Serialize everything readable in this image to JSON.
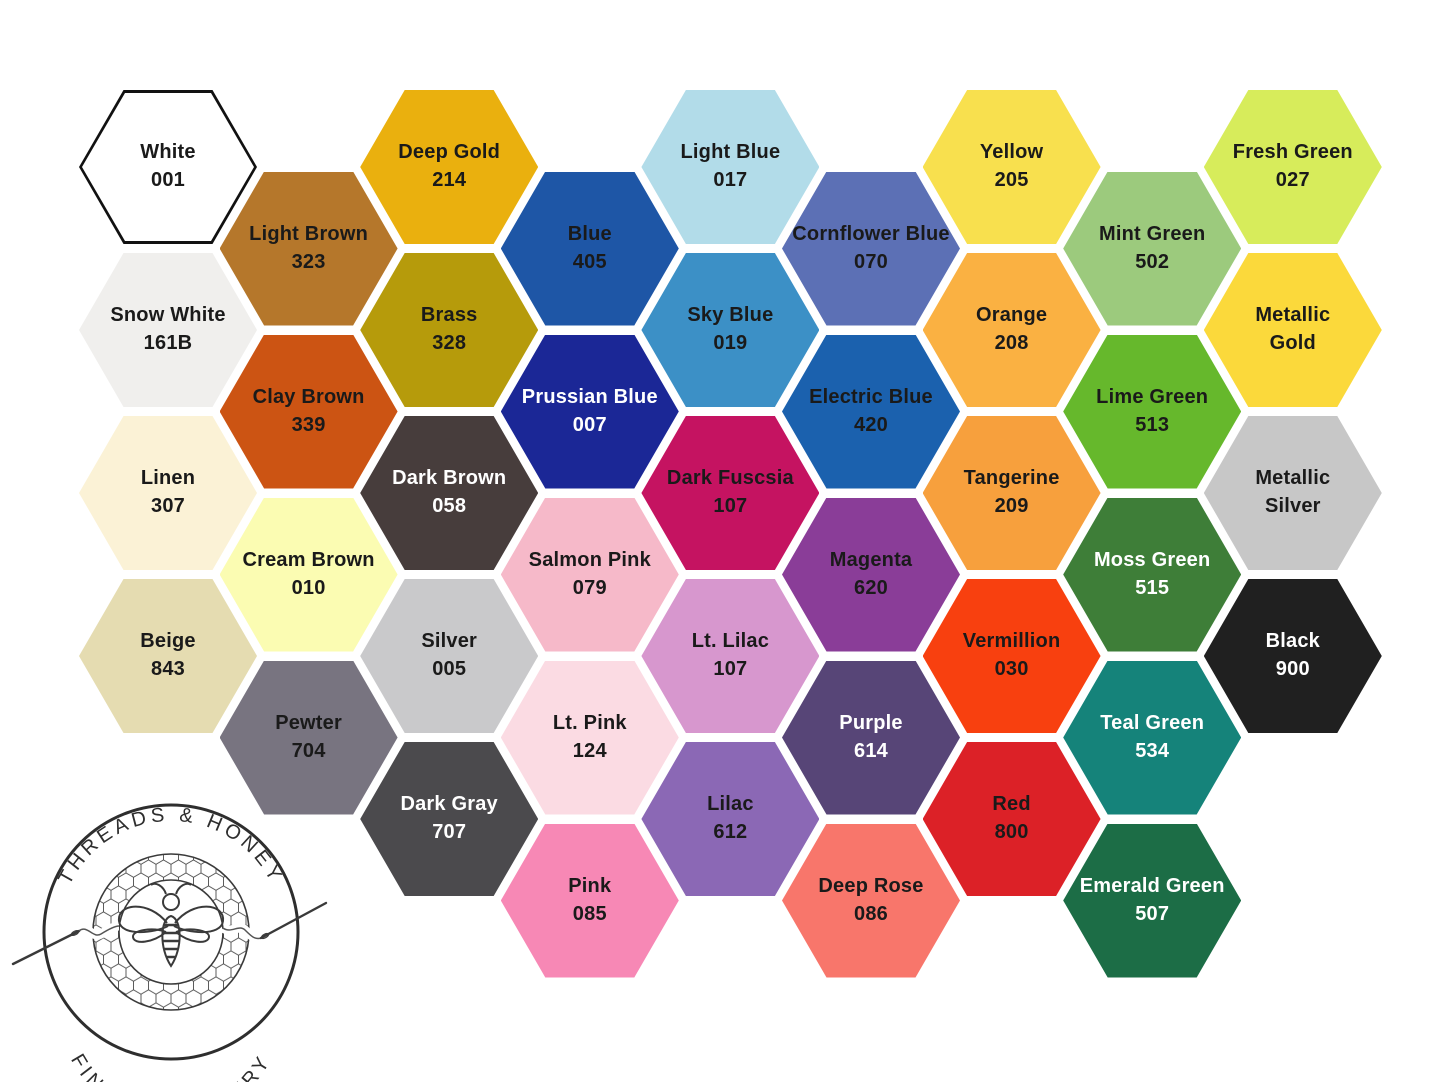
{
  "brand": {
    "line1": "THREADS & HONEY",
    "line2": "FINE EMBROIDERY"
  },
  "palette": {
    "background": "#ffffff",
    "dark_text": "#1a1a1a",
    "light_text": "#ffffff",
    "logo_ink": "#333333",
    "white_hex_outline": "#111111"
  },
  "hexagons": [
    {
      "label": "White",
      "code": "001",
      "color": "#ffffff",
      "text": "dark",
      "outlined": true,
      "col": 0,
      "row": 0
    },
    {
      "label": "Snow White",
      "code": "161B",
      "color": "#f0efed",
      "text": "dark",
      "outlined": false,
      "col": 0,
      "row": 1
    },
    {
      "label": "Linen",
      "code": "307",
      "color": "#fbf2d6",
      "text": "dark",
      "outlined": false,
      "col": 0,
      "row": 2
    },
    {
      "label": "Beige",
      "code": "843",
      "color": "#e5dcb1",
      "text": "dark",
      "outlined": false,
      "col": 0,
      "row": 3
    },
    {
      "label": "Light Brown",
      "code": "323",
      "color": "#b5772b",
      "text": "dark",
      "outlined": false,
      "col": 1,
      "row": 0
    },
    {
      "label": "Clay Brown",
      "code": "339",
      "color": "#cc5413",
      "text": "dark",
      "outlined": false,
      "col": 1,
      "row": 1
    },
    {
      "label": "Cream Brown",
      "code": "010",
      "color": "#fbfcb2",
      "text": "dark",
      "outlined": false,
      "col": 1,
      "row": 2
    },
    {
      "label": "Pewter",
      "code": "704",
      "color": "#787480",
      "text": "dark",
      "outlined": false,
      "col": 1,
      "row": 3
    },
    {
      "label": "Deep Gold",
      "code": "214",
      "color": "#eab00e",
      "text": "dark",
      "outlined": false,
      "col": 2,
      "row": 0
    },
    {
      "label": "Brass",
      "code": "328",
      "color": "#b69b0b",
      "text": "dark",
      "outlined": false,
      "col": 2,
      "row": 1
    },
    {
      "label": "Dark Brown",
      "code": "058",
      "color": "#473d3c",
      "text": "light",
      "outlined": false,
      "col": 2,
      "row": 2
    },
    {
      "label": "Silver",
      "code": "005",
      "color": "#c9c9cb",
      "text": "dark",
      "outlined": false,
      "col": 2,
      "row": 3
    },
    {
      "label": "Dark Gray",
      "code": "707",
      "color": "#4b4a4d",
      "text": "light",
      "outlined": false,
      "col": 2,
      "row": 4
    },
    {
      "label": "Blue",
      "code": "405",
      "color": "#1e56a6",
      "text": "dark",
      "outlined": false,
      "col": 3,
      "row": 0
    },
    {
      "label": "Prussian Blue",
      "code": "007",
      "color": "#1b2796",
      "text": "light",
      "outlined": false,
      "col": 3,
      "row": 1
    },
    {
      "label": "Salmon Pink",
      "code": "079",
      "color": "#f6b9c9",
      "text": "dark",
      "outlined": false,
      "col": 3,
      "row": 2
    },
    {
      "label": "Lt. Pink",
      "code": "124",
      "color": "#fbdbe3",
      "text": "dark",
      "outlined": false,
      "col": 3,
      "row": 3
    },
    {
      "label": "Pink",
      "code": "085",
      "color": "#f788b5",
      "text": "dark",
      "outlined": false,
      "col": 3,
      "row": 4
    },
    {
      "label": "Light Blue",
      "code": "017",
      "color": "#b2dce9",
      "text": "dark",
      "outlined": false,
      "col": 4,
      "row": 0
    },
    {
      "label": "Sky Blue",
      "code": "019",
      "color": "#3c90c6",
      "text": "dark",
      "outlined": false,
      "col": 4,
      "row": 1
    },
    {
      "label": "Dark Fuscsia",
      "code": "107",
      "color": "#c51361",
      "text": "dark",
      "outlined": false,
      "col": 4,
      "row": 2
    },
    {
      "label": "Lt. Lilac",
      "code": "107",
      "color": "#d797ce",
      "text": "dark",
      "outlined": false,
      "col": 4,
      "row": 3
    },
    {
      "label": "Lilac",
      "code": "612",
      "color": "#8b68b5",
      "text": "dark",
      "outlined": false,
      "col": 4,
      "row": 4
    },
    {
      "label": "Cornflower Blue",
      "code": "070",
      "color": "#5c70b5",
      "text": "dark",
      "outlined": false,
      "col": 5,
      "row": 0
    },
    {
      "label": "Electric Blue",
      "code": "420",
      "color": "#1b61ae",
      "text": "dark",
      "outlined": false,
      "col": 5,
      "row": 1
    },
    {
      "label": "Magenta",
      "code": "620",
      "color": "#8a3d98",
      "text": "dark",
      "outlined": false,
      "col": 5,
      "row": 2
    },
    {
      "label": "Purple",
      "code": "614",
      "color": "#574577",
      "text": "light",
      "outlined": false,
      "col": 5,
      "row": 3
    },
    {
      "label": "Deep Rose",
      "code": "086",
      "color": "#f8766b",
      "text": "dark",
      "outlined": false,
      "col": 5,
      "row": 4
    },
    {
      "label": "Yellow",
      "code": "205",
      "color": "#f8e04e",
      "text": "dark",
      "outlined": false,
      "col": 6,
      "row": 0
    },
    {
      "label": "Orange",
      "code": "208",
      "color": "#fab142",
      "text": "dark",
      "outlined": false,
      "col": 6,
      "row": 1
    },
    {
      "label": "Tangerine",
      "code": "209",
      "color": "#f7a03d",
      "text": "dark",
      "outlined": false,
      "col": 6,
      "row": 2
    },
    {
      "label": "Vermillion",
      "code": "030",
      "color": "#f8400f",
      "text": "dark",
      "outlined": false,
      "col": 6,
      "row": 3
    },
    {
      "label": "Red",
      "code": "800",
      "color": "#dc2127",
      "text": "dark",
      "outlined": false,
      "col": 6,
      "row": 4
    },
    {
      "label": "Mint Green",
      "code": "502",
      "color": "#9cca7d",
      "text": "dark",
      "outlined": false,
      "col": 7,
      "row": 0
    },
    {
      "label": "Lime Green",
      "code": "513",
      "color": "#66b82c",
      "text": "dark",
      "outlined": false,
      "col": 7,
      "row": 1
    },
    {
      "label": "Moss Green",
      "code": "515",
      "color": "#3e7e38",
      "text": "light",
      "outlined": false,
      "col": 7,
      "row": 2
    },
    {
      "label": "Teal Green",
      "code": "534",
      "color": "#15837a",
      "text": "light",
      "outlined": false,
      "col": 7,
      "row": 3
    },
    {
      "label": "Emerald Green",
      "code": "507",
      "color": "#1c6d46",
      "text": "light",
      "outlined": false,
      "col": 7,
      "row": 4
    },
    {
      "label": "Fresh Green",
      "code": "027",
      "color": "#d7ec5b",
      "text": "dark",
      "outlined": false,
      "col": 8,
      "row": 0
    },
    {
      "label": "Metallic\nGold",
      "code": "",
      "color": "#fbd93b",
      "text": "dark",
      "outlined": false,
      "col": 8,
      "row": 1
    },
    {
      "label": "Metallic\nSilver",
      "code": "",
      "color": "#c7c7c7",
      "text": "dark",
      "outlined": false,
      "col": 8,
      "row": 2
    },
    {
      "label": "Black",
      "code": "900",
      "color": "#202020",
      "text": "light",
      "outlined": false,
      "col": 8,
      "row": 3
    }
  ]
}
